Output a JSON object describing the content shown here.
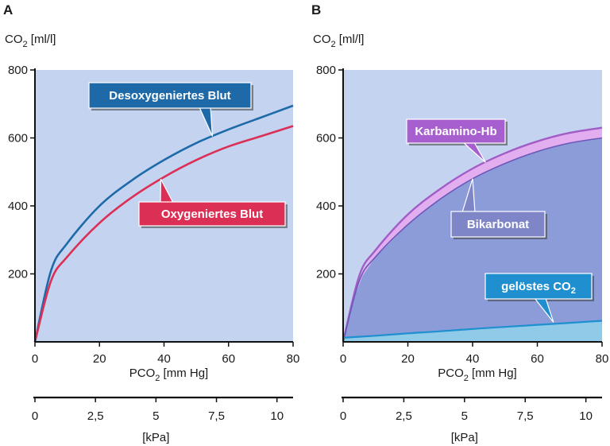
{
  "chart_data": [
    {
      "panel": "A",
      "type": "line",
      "ylabel": {
        "main": "CO",
        "sub": "2",
        "unit": " [ml/l]"
      },
      "xlabel": {
        "main": "PCO",
        "sub": "2",
        "unit": " [mm Hg]"
      },
      "xlim": [
        0,
        80
      ],
      "ylim": [
        0,
        800
      ],
      "xticks": [
        "0",
        "20",
        "40",
        "60",
        "80"
      ],
      "yticks": [
        "200",
        "400",
        "600",
        "800"
      ],
      "secondary_x": {
        "label": "[kPa]",
        "ticks": [
          "0",
          "2,5",
          "5",
          "7,5",
          "10"
        ],
        "tick_values_kpa": [
          0,
          2.5,
          5,
          7.5,
          10
        ]
      },
      "background": "#c3d3f0",
      "series": [
        {
          "name": "Desoxygeniertes Blut",
          "color": "#1e6aa8",
          "x": [
            0,
            5,
            10,
            20,
            30,
            40,
            50,
            60,
            70,
            80
          ],
          "y": [
            0,
            210,
            290,
            400,
            475,
            535,
            585,
            625,
            660,
            695
          ]
        },
        {
          "name": "Oxygeniertes Blut",
          "color": "#dc2f55",
          "x": [
            0,
            5,
            10,
            20,
            30,
            40,
            50,
            60,
            70,
            80
          ],
          "y": [
            0,
            180,
            250,
            350,
            425,
            485,
            535,
            575,
            605,
            635
          ]
        }
      ]
    },
    {
      "panel": "B",
      "type": "area",
      "ylabel": {
        "main": "CO",
        "sub": "2",
        "unit": " [ml/l]"
      },
      "xlabel": {
        "main": "PCO",
        "sub": "2",
        "unit": " [mm Hg]"
      },
      "xlim": [
        0,
        80
      ],
      "ylim": [
        0,
        800
      ],
      "xticks": [
        "0",
        "20",
        "40",
        "60",
        "80"
      ],
      "yticks": [
        "200",
        "400",
        "600",
        "800"
      ],
      "secondary_x": {
        "label": "[kPa]",
        "ticks": [
          "0",
          "2,5",
          "5",
          "7,5",
          "10"
        ],
        "tick_values_kpa": [
          0,
          2.5,
          5,
          7.5,
          10
        ]
      },
      "background": "#c3d3f0",
      "series": [
        {
          "name": "Karbamino-Hb",
          "label": {
            "main": "Karbamino-Hb",
            "sub": ""
          },
          "color": "#c58ce0",
          "x": [
            0,
            5,
            10,
            20,
            30,
            40,
            50,
            60,
            70,
            80
          ],
          "y": [
            0,
            195,
            270,
            375,
            450,
            510,
            555,
            590,
            615,
            630
          ]
        },
        {
          "name": "Bikarbonat",
          "label": {
            "main": "Bikarbonat",
            "sub": ""
          },
          "color": "#8b9cd8",
          "x": [
            0,
            5,
            10,
            20,
            30,
            40,
            50,
            60,
            70,
            80
          ],
          "y": [
            0,
            180,
            250,
            345,
            420,
            480,
            525,
            560,
            585,
            600
          ]
        },
        {
          "name": "gelöstes CO2",
          "label": {
            "main": "gelöstes CO",
            "sub": "2"
          },
          "color": "#3aa8dc",
          "x": [
            0,
            10,
            20,
            30,
            40,
            50,
            60,
            70,
            80
          ],
          "y": [
            12,
            18,
            25,
            31,
            38,
            44,
            50,
            56,
            62
          ]
        }
      ]
    }
  ]
}
